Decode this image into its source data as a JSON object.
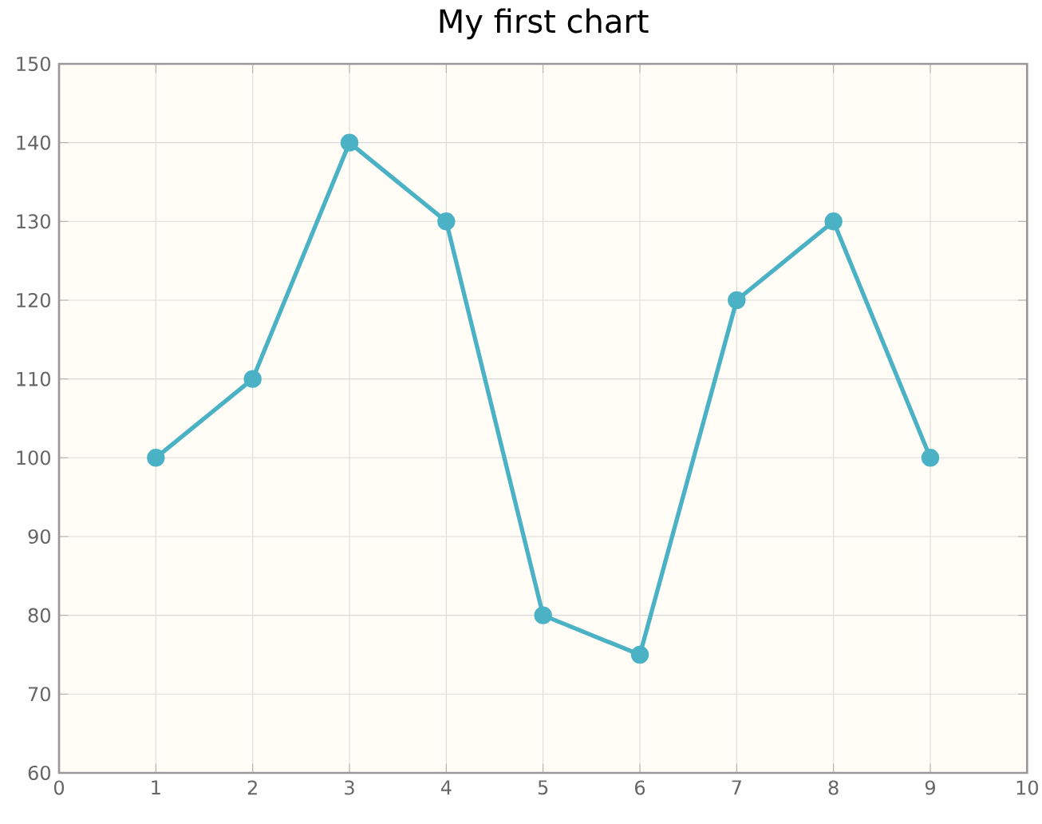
{
  "chart_data": {
    "type": "line",
    "title": "My first chart",
    "x": [
      1,
      2,
      3,
      4,
      5,
      6,
      7,
      8,
      9
    ],
    "series": [
      {
        "color": "#4bb2c5",
        "values": [
          100,
          110,
          140,
          130,
          80,
          75,
          120,
          130,
          100
        ]
      }
    ],
    "xlim": [
      0,
      10
    ],
    "xticks": [
      0,
      1,
      2,
      3,
      4,
      5,
      6,
      7,
      8,
      9,
      10
    ],
    "ylim": [
      60,
      150
    ],
    "yticks": [
      60,
      70,
      80,
      90,
      100,
      110,
      120,
      130,
      140,
      150
    ],
    "grid": true,
    "marker": "circle",
    "line_style": "solid"
  }
}
